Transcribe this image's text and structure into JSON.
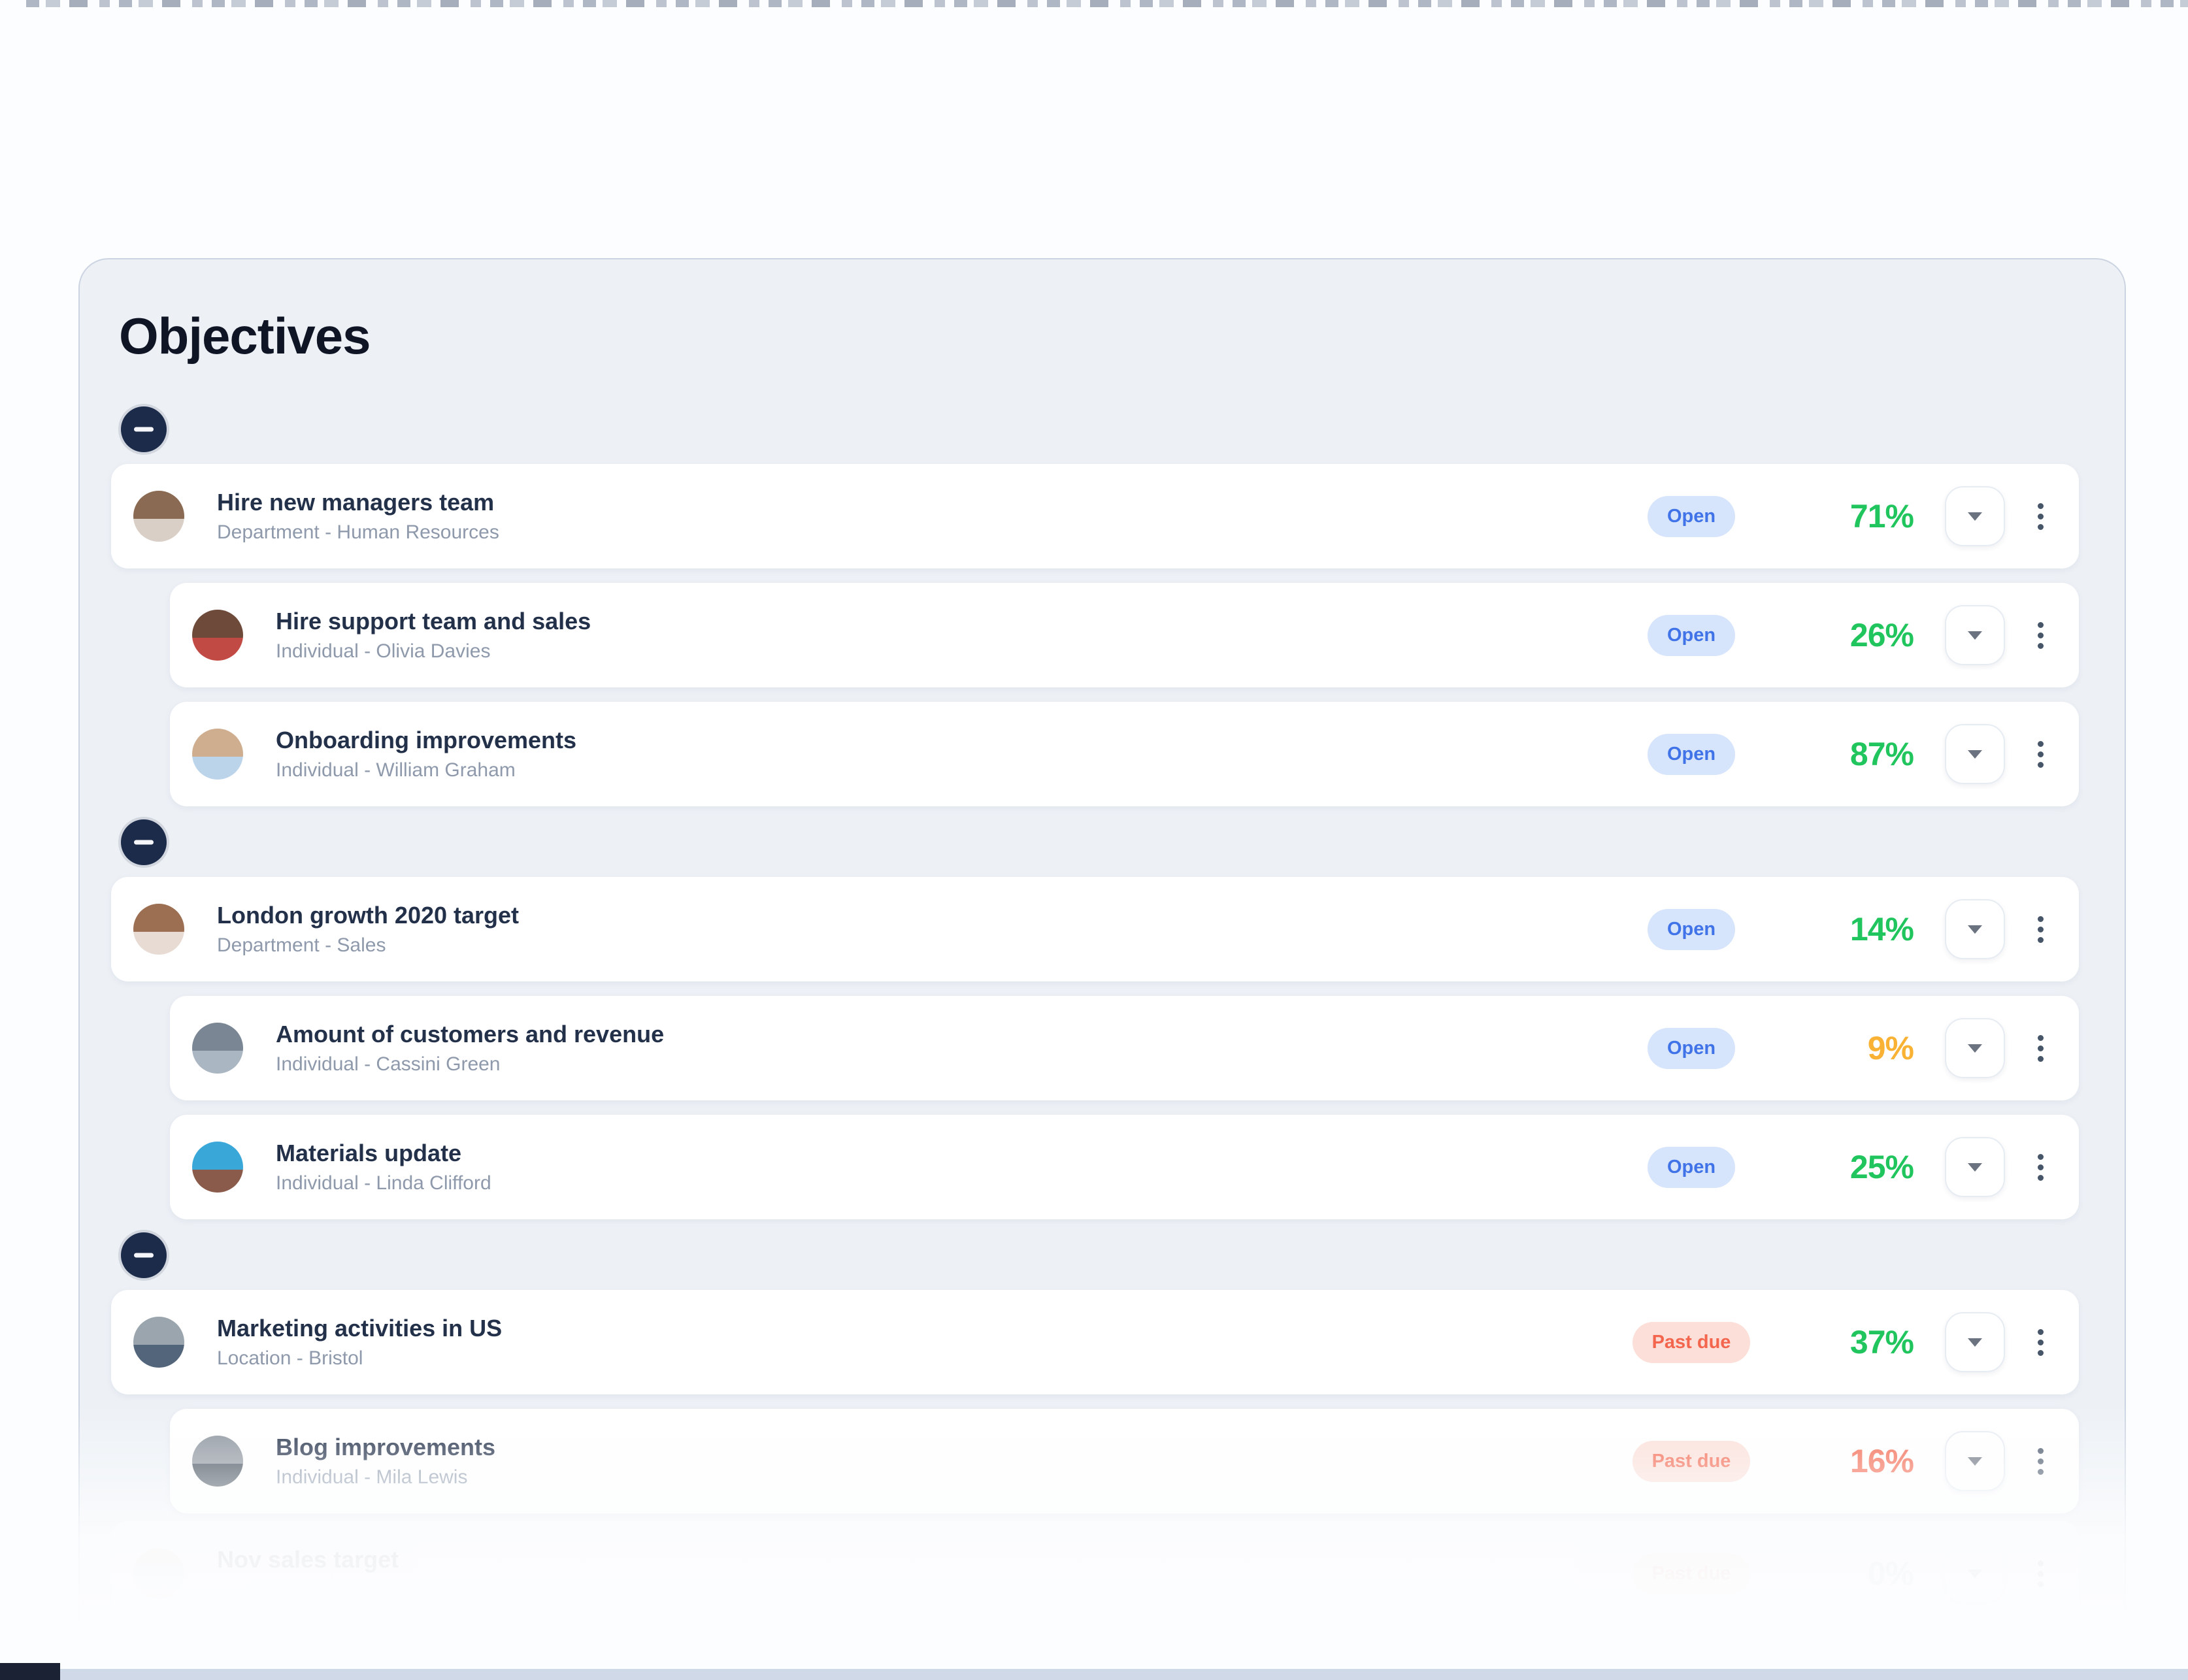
{
  "page": {
    "title": "Objectives"
  },
  "colors": {
    "page_bg": "#fcfdfe",
    "panel_bg": "#edf1f6",
    "panel_border": "#ccd4e2",
    "card_bg": "#ffffff",
    "title_text": "#0f1524",
    "row_title_text": "#233049",
    "row_subtitle_text": "#8e99ab",
    "badge_open_bg": "#d6e4fc",
    "badge_open_text": "#4073e8",
    "badge_pastdue_bg": "#fcdfd8",
    "badge_pastdue_text": "#f4654d",
    "percent_green": "#21c55d",
    "percent_yellow": "#f9b234",
    "percent_red": "#f4664d",
    "percent_gray": "#9ba4b5",
    "minus_icon_bg": "#1d2b4b",
    "bottom_strip": "#cfd9e8"
  },
  "rows": [
    {
      "level": "parent",
      "group_start": true,
      "title": "Hire new managers team",
      "subtitle": "Department - Human Resources",
      "badge": "Open",
      "badge_type": "open",
      "percent": "71%",
      "percent_color": "#21c55d",
      "avatar_colors": [
        "#8a6a52",
        "#d9cfc6"
      ],
      "faded": false
    },
    {
      "level": "child",
      "group_start": false,
      "title": "Hire support team and sales",
      "subtitle": "Individual - Olivia Davies",
      "badge": "Open",
      "badge_type": "open",
      "percent": "26%",
      "percent_color": "#21c55d",
      "avatar_colors": [
        "#6e4a3a",
        "#c24a44"
      ],
      "faded": false
    },
    {
      "level": "child",
      "group_start": false,
      "title": "Onboarding improvements",
      "subtitle": "Individual - William Graham",
      "badge": "Open",
      "badge_type": "open",
      "percent": "87%",
      "percent_color": "#21c55d",
      "avatar_colors": [
        "#cfae8f",
        "#bcd4ea"
      ],
      "faded": false
    },
    {
      "level": "parent",
      "group_start": true,
      "title": "London growth 2020 target",
      "subtitle": "Department - Sales",
      "badge": "Open",
      "badge_type": "open",
      "percent": "14%",
      "percent_color": "#21c55d",
      "avatar_colors": [
        "#9c6f52",
        "#e7dbd4"
      ],
      "faded": false
    },
    {
      "level": "child",
      "group_start": false,
      "title": "Amount of customers and revenue",
      "subtitle": "Individual - Cassini Green",
      "badge": "Open",
      "badge_type": "open",
      "percent": "9%",
      "percent_color": "#f9b234",
      "avatar_colors": [
        "#7a8694",
        "#aab6c2"
      ],
      "faded": false
    },
    {
      "level": "child",
      "group_start": false,
      "title": "Materials update",
      "subtitle": "Individual - Linda Clifford",
      "badge": "Open",
      "badge_type": "open",
      "percent": "25%",
      "percent_color": "#21c55d",
      "avatar_colors": [
        "#3aa7d9",
        "#8a5a4a"
      ],
      "faded": false
    },
    {
      "level": "parent",
      "group_start": true,
      "title": "Marketing activities in US",
      "subtitle": "Location - Bristol",
      "badge": "Past due",
      "badge_type": "pastdue",
      "percent": "37%",
      "percent_color": "#21c55d",
      "avatar_colors": [
        "#9aa5ad",
        "#53657a"
      ],
      "faded": false
    },
    {
      "level": "child",
      "group_start": false,
      "title": "Blog improvements",
      "subtitle": "Individual - Mila Lewis",
      "badge": "Past due",
      "badge_type": "pastdue",
      "percent": "16%",
      "percent_color": "#f4664d",
      "avatar_colors": [
        "#8b939c",
        "#3f4a57"
      ],
      "faded": false
    },
    {
      "level": "parent",
      "group_start": false,
      "title": "Nov sales target",
      "subtitle": "",
      "badge": "Past due",
      "badge_type": "pastdue",
      "percent": "0%",
      "percent_color": "#9ba4b5",
      "avatar_colors": [
        "#e0cfc3",
        "#f2ece7"
      ],
      "faded": true
    }
  ]
}
